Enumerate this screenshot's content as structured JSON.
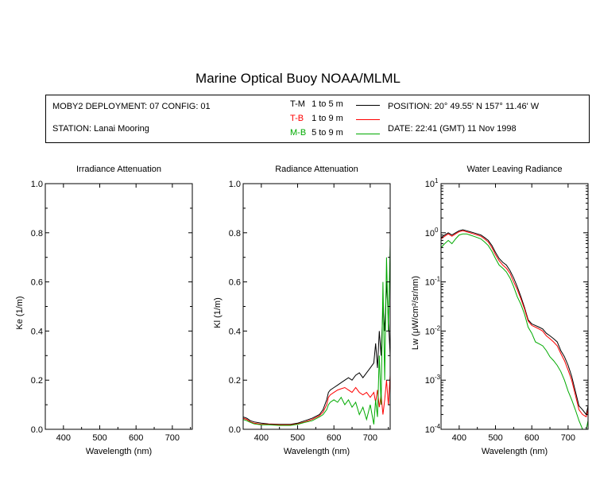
{
  "header": {
    "title": "Marine Optical Buoy NOAA/MLML",
    "deployment": "MOBY2 DEPLOYMENT: 07 CONFIG: 01",
    "station": "STATION: Lanai Mooring",
    "position": "POSITION: 20° 49.55' N   157° 11.46' W",
    "date": "DATE: 22:41 (GMT) 11 Nov 1998",
    "legend": [
      {
        "code": "T-M",
        "range": "1 to 5  m",
        "color": "#000000"
      },
      {
        "code": "T-B",
        "range": "1 to 9  m",
        "color": "#ff0000"
      },
      {
        "code": "M-B",
        "range": "5 to 9  m",
        "color": "#00aa00"
      }
    ]
  },
  "chart_data": [
    {
      "type": "line",
      "title": "Irradiance Attenuation",
      "xlabel": "Wavelength (nm)",
      "ylabel": "Ke  (1/m)",
      "xlim": [
        350,
        755
      ],
      "ylim": [
        0,
        1
      ],
      "xticks": [
        "400",
        "500",
        "600",
        "700"
      ],
      "yticks": [
        "0.0",
        "0.2",
        "0.4",
        "0.6",
        "0.8",
        "1.0"
      ],
      "series": []
    },
    {
      "type": "line",
      "title": "Radiance Attenuation",
      "xlabel": "Wavelength (nm)",
      "ylabel": "Kl  (1/m)",
      "xlim": [
        350,
        755
      ],
      "ylim": [
        0,
        1
      ],
      "xticks": [
        "400",
        "500",
        "600",
        "700"
      ],
      "yticks": [
        "0.0",
        "0.2",
        "0.4",
        "0.6",
        "0.8",
        "1.0"
      ],
      "series": [
        {
          "name": "T-M",
          "color": "#000000",
          "x": [
            350,
            360,
            370,
            380,
            400,
            420,
            450,
            480,
            500,
            520,
            540,
            560,
            570,
            580,
            585,
            590,
            600,
            610,
            620,
            630,
            640,
            650,
            660,
            670,
            680,
            690,
            700,
            710,
            715,
            720,
            725,
            730,
            735,
            740,
            745,
            750,
            755
          ],
          "y": [
            0.05,
            0.045,
            0.035,
            0.03,
            0.025,
            0.022,
            0.02,
            0.02,
            0.025,
            0.035,
            0.045,
            0.06,
            0.08,
            0.12,
            0.15,
            0.16,
            0.17,
            0.18,
            0.19,
            0.2,
            0.21,
            0.2,
            0.22,
            0.23,
            0.21,
            0.23,
            0.25,
            0.27,
            0.35,
            0.25,
            0.4,
            0.3,
            0.5,
            0.4,
            0.6,
            0.45,
            0.3
          ]
        },
        {
          "name": "T-B",
          "color": "#ff0000",
          "x": [
            350,
            360,
            370,
            380,
            400,
            420,
            450,
            480,
            500,
            520,
            540,
            560,
            570,
            580,
            585,
            590,
            600,
            610,
            620,
            630,
            640,
            650,
            660,
            670,
            680,
            690,
            700,
            710,
            715,
            720,
            725,
            730,
            735,
            740,
            745,
            750,
            755
          ],
          "y": [
            0.045,
            0.04,
            0.03,
            0.025,
            0.02,
            0.02,
            0.018,
            0.018,
            0.022,
            0.03,
            0.04,
            0.055,
            0.07,
            0.1,
            0.13,
            0.14,
            0.15,
            0.16,
            0.165,
            0.17,
            0.16,
            0.15,
            0.17,
            0.15,
            0.14,
            0.15,
            0.13,
            0.15,
            0.11,
            0.16,
            0.09,
            0.14,
            0.06,
            0.12,
            0.2,
            0.1,
            0.22
          ]
        },
        {
          "name": "M-B",
          "color": "#00aa00",
          "x": [
            350,
            360,
            370,
            380,
            400,
            420,
            450,
            480,
            500,
            520,
            540,
            560,
            570,
            580,
            585,
            590,
            600,
            610,
            620,
            630,
            640,
            650,
            660,
            670,
            680,
            690,
            700,
            710,
            715,
            720,
            725,
            730,
            735,
            740,
            745,
            750,
            755
          ],
          "y": [
            0.04,
            0.035,
            0.028,
            0.022,
            0.018,
            0.018,
            0.016,
            0.016,
            0.02,
            0.028,
            0.035,
            0.05,
            0.06,
            0.08,
            0.1,
            0.11,
            0.12,
            0.11,
            0.13,
            0.1,
            0.12,
            0.09,
            0.11,
            0.06,
            0.09,
            0.04,
            0.1,
            0.02,
            0.12,
            0.05,
            0.3,
            0.1,
            0.6,
            0.2,
            0.7,
            0.4,
            0.75
          ]
        }
      ]
    },
    {
      "type": "line",
      "title": "Water Leaving Radiance",
      "xlabel": "Wavelength (nm)",
      "ylabel": "Lw  (μW/cm²/sr/nm)",
      "xlim": [
        350,
        755
      ],
      "ylim": [
        0.0001,
        10
      ],
      "yscale": "log",
      "xticks": [
        "400",
        "500",
        "600",
        "700"
      ],
      "yticks": [
        "10^1",
        "10^0",
        "10^-1",
        "10^-2",
        "10^-3",
        "10^-4"
      ],
      "series": [
        {
          "name": "T-M",
          "color": "#000000",
          "x": [
            350,
            360,
            370,
            380,
            390,
            400,
            410,
            420,
            430,
            440,
            450,
            460,
            470,
            480,
            490,
            500,
            510,
            520,
            530,
            540,
            550,
            560,
            570,
            580,
            590,
            600,
            610,
            620,
            630,
            640,
            650,
            660,
            670,
            680,
            690,
            700,
            710,
            720,
            730,
            740,
            750,
            755
          ],
          "y": [
            0.8,
            0.9,
            1.0,
            0.9,
            1.0,
            1.1,
            1.15,
            1.1,
            1.05,
            1.0,
            0.95,
            0.9,
            0.8,
            0.7,
            0.55,
            0.4,
            0.3,
            0.25,
            0.22,
            0.17,
            0.12,
            0.08,
            0.05,
            0.03,
            0.017,
            0.014,
            0.013,
            0.012,
            0.011,
            0.009,
            0.008,
            0.007,
            0.006,
            0.004,
            0.003,
            0.002,
            0.0012,
            0.0006,
            0.0003,
            0.00025,
            0.0002,
            0.0003
          ]
        },
        {
          "name": "T-B",
          "color": "#ff0000",
          "x": [
            350,
            360,
            370,
            380,
            390,
            400,
            410,
            420,
            430,
            440,
            450,
            460,
            470,
            480,
            490,
            500,
            510,
            520,
            530,
            540,
            550,
            560,
            570,
            580,
            590,
            600,
            610,
            620,
            630,
            640,
            650,
            660,
            670,
            680,
            690,
            700,
            710,
            720,
            730,
            740,
            750,
            755
          ],
          "y": [
            0.75,
            0.85,
            0.95,
            0.85,
            0.95,
            1.05,
            1.1,
            1.05,
            1.0,
            0.95,
            0.9,
            0.85,
            0.75,
            0.65,
            0.5,
            0.36,
            0.27,
            0.22,
            0.19,
            0.15,
            0.1,
            0.07,
            0.045,
            0.028,
            0.016,
            0.013,
            0.012,
            0.011,
            0.01,
            0.008,
            0.007,
            0.006,
            0.005,
            0.0035,
            0.0025,
            0.0016,
            0.001,
            0.0005,
            0.00025,
            0.0002,
            0.00018,
            0.00025
          ]
        },
        {
          "name": "M-B",
          "color": "#00aa00",
          "x": [
            350,
            360,
            370,
            380,
            390,
            400,
            410,
            420,
            430,
            440,
            450,
            460,
            470,
            480,
            490,
            500,
            510,
            520,
            530,
            540,
            550,
            560,
            570,
            580,
            590,
            600,
            610,
            620,
            630,
            640,
            650,
            660,
            670,
            680,
            690,
            700,
            710,
            720,
            730,
            740,
            750,
            755
          ],
          "y": [
            0.5,
            0.6,
            0.7,
            0.6,
            0.75,
            0.9,
            0.95,
            0.95,
            0.9,
            0.85,
            0.8,
            0.75,
            0.65,
            0.55,
            0.42,
            0.3,
            0.22,
            0.19,
            0.16,
            0.12,
            0.08,
            0.05,
            0.035,
            0.022,
            0.012,
            0.009,
            0.006,
            0.0055,
            0.005,
            0.004,
            0.003,
            0.0025,
            0.002,
            0.0015,
            0.001,
            0.0006,
            0.0004,
            0.00025,
            0.00015,
            0.0001,
            0.0001,
            0.00015
          ]
        }
      ]
    }
  ]
}
